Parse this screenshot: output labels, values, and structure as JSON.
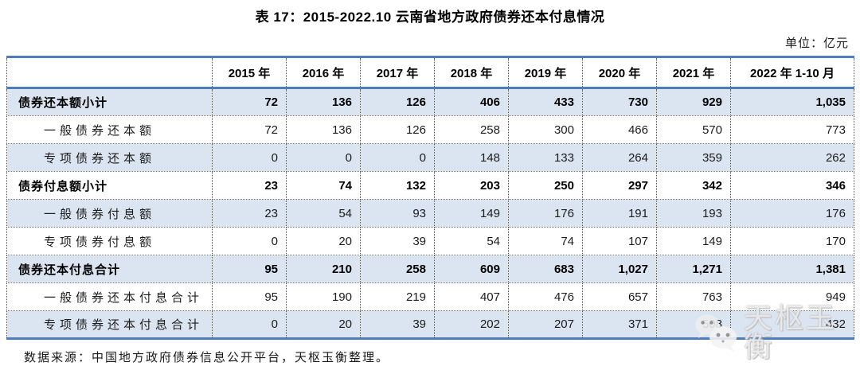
{
  "title": "表 17：2015-2022.10 云南省地方政府债券还本付息情况",
  "unit_label": "单位：亿元",
  "table": {
    "columns": [
      "2015 年",
      "2016 年",
      "2017 年",
      "2018 年",
      "2019 年",
      "2020 年",
      "2021 年",
      "2022 年 1-10 月"
    ],
    "rows": [
      {
        "label": "债券还本额小计",
        "level": "total",
        "values": [
          "72",
          "136",
          "126",
          "406",
          "433",
          "730",
          "929",
          "1,035"
        ]
      },
      {
        "label": "一般债券还本额",
        "level": "detail",
        "values": [
          "72",
          "136",
          "126",
          "258",
          "300",
          "466",
          "570",
          "773"
        ]
      },
      {
        "label": "专项债券还本额",
        "level": "detail",
        "values": [
          "0",
          "0",
          "0",
          "148",
          "133",
          "264",
          "359",
          "262"
        ]
      },
      {
        "label": "债券付息额小计",
        "level": "total",
        "values": [
          "23",
          "74",
          "132",
          "203",
          "250",
          "297",
          "342",
          "346"
        ]
      },
      {
        "label": "一般债券付息额",
        "level": "detail",
        "values": [
          "23",
          "54",
          "93",
          "149",
          "176",
          "191",
          "193",
          "176"
        ]
      },
      {
        "label": "专项债券付息额",
        "level": "detail",
        "values": [
          "0",
          "20",
          "39",
          "54",
          "74",
          "107",
          "149",
          "170"
        ]
      },
      {
        "label": "债券还本付息合计",
        "level": "total",
        "values": [
          "95",
          "210",
          "258",
          "609",
          "683",
          "1,027",
          "1,271",
          "1,381"
        ]
      },
      {
        "label": "一般债券还本付息合计",
        "level": "detail",
        "values": [
          "95",
          "190",
          "219",
          "407",
          "476",
          "657",
          "763",
          "949"
        ]
      },
      {
        "label": "专项债券还本付息合计",
        "level": "detail",
        "values": [
          "0",
          "20",
          "39",
          "202",
          "207",
          "371",
          "508",
          "432"
        ]
      }
    ]
  },
  "source": "数据来源：中国地方政府债券信息公开平台，天枢玉衡整理。",
  "watermark": {
    "text": "天枢玉衡",
    "icon": "wechat-bubbles-icon"
  },
  "colors": {
    "accent_blue_border": "#4E7DBE",
    "row_shade_blue": "#DBE4F1",
    "text_black": "#111111",
    "watermark_gray": "#E9E9E9"
  },
  "chart_data": {
    "type": "table",
    "title": "表 17：2015-2022.10 云南省地方政府债券还本付息情况",
    "unit": "亿元",
    "categories": [
      "2015",
      "2016",
      "2017",
      "2018",
      "2019",
      "2020",
      "2021",
      "2022.1-10"
    ],
    "series": [
      {
        "name": "债券还本额小计",
        "values": [
          72,
          136,
          126,
          406,
          433,
          730,
          929,
          1035
        ]
      },
      {
        "name": "一般债券还本额",
        "values": [
          72,
          136,
          126,
          258,
          300,
          466,
          570,
          773
        ]
      },
      {
        "name": "专项债券还本额",
        "values": [
          0,
          0,
          0,
          148,
          133,
          264,
          359,
          262
        ]
      },
      {
        "name": "债券付息额小计",
        "values": [
          23,
          74,
          132,
          203,
          250,
          297,
          342,
          346
        ]
      },
      {
        "name": "一般债券付息额",
        "values": [
          23,
          54,
          93,
          149,
          176,
          191,
          193,
          176
        ]
      },
      {
        "name": "专项债券付息额",
        "values": [
          0,
          20,
          39,
          54,
          74,
          107,
          149,
          170
        ]
      },
      {
        "name": "债券还本付息合计",
        "values": [
          95,
          210,
          258,
          609,
          683,
          1027,
          1271,
          1381
        ]
      },
      {
        "name": "一般债券还本付息合计",
        "values": [
          95,
          190,
          219,
          407,
          476,
          657,
          763,
          949
        ]
      },
      {
        "name": "专项债券还本付息合计",
        "values": [
          0,
          20,
          39,
          202,
          207,
          371,
          508,
          432
        ]
      }
    ],
    "source": "数据来源：中国地方政府债券信息公开平台，天枢玉衡整理。"
  }
}
